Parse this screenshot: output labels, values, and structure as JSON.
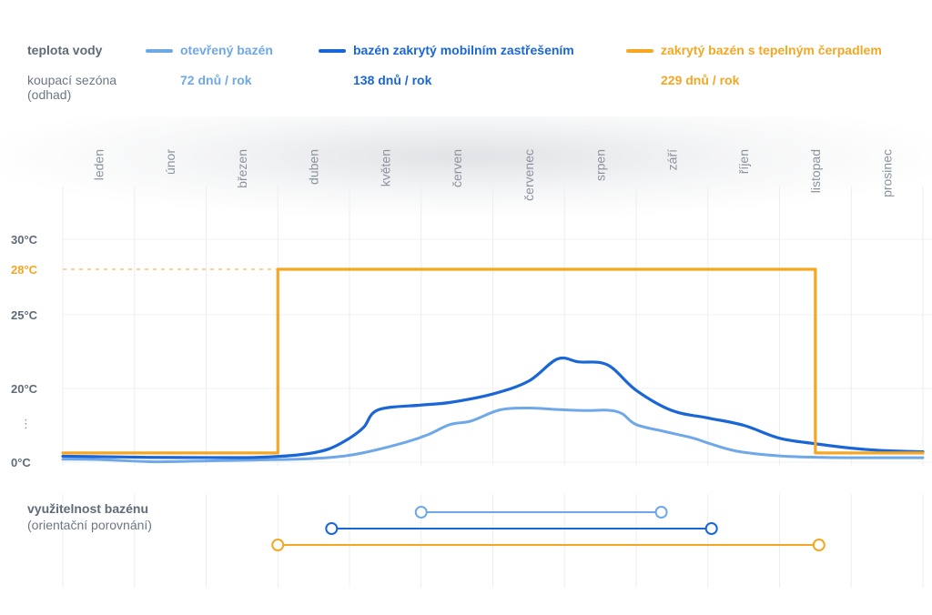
{
  "legend": {
    "title": "teplota vody",
    "season_label_line1": "koupací sezóna",
    "season_label_line2": "(odhad)",
    "series": [
      {
        "name": "otevřený bazén",
        "season": "72 dnů / rok",
        "color": "#6fa8e8"
      },
      {
        "name": "bazén zakrytý mobilním zastřešením",
        "season": "138 dnů / rok",
        "color": "#1a66d6"
      },
      {
        "name": "zakrytý bazén s tepelným čerpadlem",
        "season": "229 dnů / rok",
        "color": "#f5a623"
      }
    ]
  },
  "usage": {
    "title": "využitelnost bazénu",
    "subtitle": "(orientační porovnání)"
  },
  "chart_data": {
    "type": "line",
    "x_unit": "měsíc",
    "months": [
      "leden",
      "únor",
      "březen",
      "duben",
      "květen",
      "červen",
      "červenec",
      "srpen",
      "září",
      "říjen",
      "listopad",
      "prosinec"
    ],
    "y_ticks": [
      {
        "value": 0,
        "label": "0°C"
      },
      {
        "value": 20,
        "label": "20°C"
      },
      {
        "value": 25,
        "label": "25°C"
      },
      {
        "value": 28,
        "label": "28°C",
        "highlight": true
      },
      {
        "value": 30,
        "label": "30°C"
      }
    ],
    "y_break_marker": "⋮",
    "x_range": [
      0,
      12
    ],
    "series": [
      {
        "name": "otevřený bazén",
        "color": "#6fa8e8",
        "points": [
          [
            0,
            0.8
          ],
          [
            0.5,
            0.7
          ],
          [
            1.3,
            0.1
          ],
          [
            2.0,
            0.35
          ],
          [
            2.7,
            0.6
          ],
          [
            3.4,
            0.9
          ],
          [
            3.9,
            1.6
          ],
          [
            4.3,
            3
          ],
          [
            4.8,
            5.5
          ],
          [
            5.1,
            7.5
          ],
          [
            5.4,
            10.2
          ],
          [
            5.7,
            11.2
          ],
          [
            6.1,
            14.2
          ],
          [
            6.5,
            14.7
          ],
          [
            6.9,
            14.3
          ],
          [
            7.3,
            14.0
          ],
          [
            7.6,
            14.1
          ],
          [
            7.8,
            13.2
          ],
          [
            8.0,
            10.2
          ],
          [
            8.4,
            8.3
          ],
          [
            8.8,
            6.5
          ],
          [
            9.0,
            5.2
          ],
          [
            9.4,
            3.0
          ],
          [
            10.0,
            1.7
          ],
          [
            10.6,
            1.3
          ],
          [
            11.2,
            1.2
          ],
          [
            12,
            1.2
          ]
        ]
      },
      {
        "name": "bazén zakrytý mobilním zastřešením",
        "color": "#1a66d6",
        "points": [
          [
            0,
            1.6
          ],
          [
            0.5,
            1.5
          ],
          [
            1.2,
            1.3
          ],
          [
            2.0,
            1.25
          ],
          [
            2.7,
            1.3
          ],
          [
            3.3,
            2.0
          ],
          [
            3.7,
            3.5
          ],
          [
            4.0,
            6.5
          ],
          [
            4.2,
            9.5
          ],
          [
            4.4,
            14.2
          ],
          [
            5.0,
            15.5
          ],
          [
            5.4,
            16.2
          ],
          [
            6.0,
            18.5
          ],
          [
            6.5,
            20.5
          ],
          [
            6.9,
            22.0
          ],
          [
            7.2,
            21.8
          ],
          [
            7.6,
            21.6
          ],
          [
            8.0,
            19.5
          ],
          [
            8.5,
            14.0
          ],
          [
            9.0,
            12.0
          ],
          [
            9.5,
            10.0
          ],
          [
            10.0,
            6.5
          ],
          [
            10.5,
            5.0
          ],
          [
            11.0,
            3.8
          ],
          [
            11.4,
            3.2
          ],
          [
            12,
            2.8
          ]
        ]
      },
      {
        "name": "zakrytý bazén s tepelným čerpadlem",
        "color": "#f5a623",
        "points": [
          [
            0,
            2.5
          ],
          [
            3.0,
            2.5
          ],
          [
            3.0,
            28
          ],
          [
            10.5,
            28
          ],
          [
            10.5,
            2.5
          ],
          [
            12,
            2.5
          ]
        ]
      }
    ],
    "usage_ranges": [
      {
        "series": "otevřený bazén",
        "start": 5.0,
        "end": 8.35,
        "color": "#6fa8e8"
      },
      {
        "series": "bazén zakrytý mobilním zastřešením",
        "start": 3.75,
        "end": 9.05,
        "color": "#1a66d6"
      },
      {
        "series": "zakrytý bazén s tepelným čerpadlem",
        "start": 3.0,
        "end": 10.55,
        "color": "#f5a623"
      }
    ],
    "grid": true
  }
}
